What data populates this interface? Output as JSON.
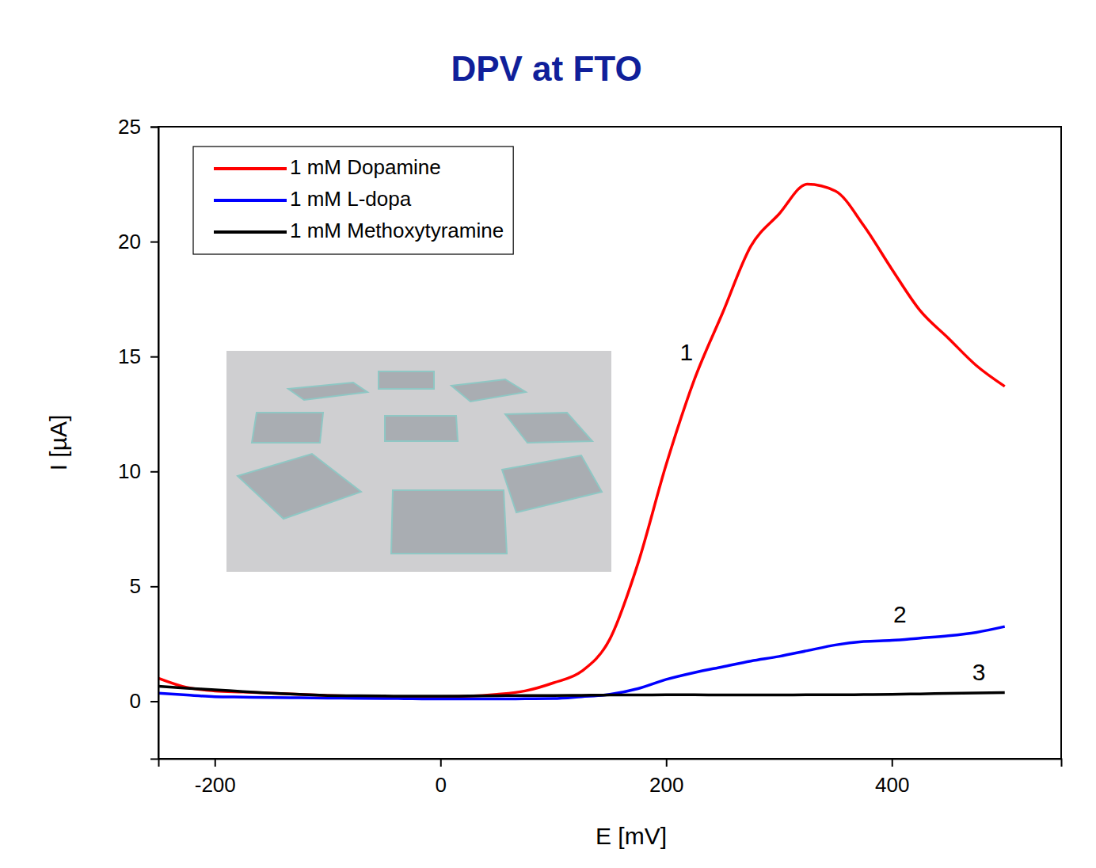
{
  "chart_data": {
    "type": "line",
    "title": "DPV at FTO",
    "x_label": "E [mV]",
    "y_label": "I [µA]",
    "x": [
      -250,
      -225,
      -200,
      -175,
      -150,
      -125,
      -100,
      -75,
      -50,
      -25,
      0,
      25,
      50,
      75,
      100,
      125,
      150,
      175,
      200,
      225,
      250,
      275,
      300,
      325,
      350,
      375,
      400,
      425,
      450,
      475,
      500
    ],
    "series": [
      {
        "name": "1 mM Dopamine",
        "color": "#ff0000",
        "values": [
          1.0,
          0.6,
          0.45,
          0.4,
          0.35,
          0.3,
          0.25,
          0.22,
          0.2,
          0.2,
          0.2,
          0.22,
          0.3,
          0.45,
          0.8,
          1.3,
          2.7,
          6.0,
          10.3,
          14.0,
          16.9,
          19.8,
          21.2,
          22.5,
          22.2,
          20.7,
          18.8,
          17.0,
          15.8,
          14.6,
          13.7
        ]
      },
      {
        "name": "1 mM L-dopa",
        "color": "#0000ff",
        "values": [
          0.35,
          0.27,
          0.2,
          0.18,
          0.16,
          0.15,
          0.14,
          0.13,
          0.12,
          0.11,
          0.1,
          0.1,
          0.1,
          0.11,
          0.12,
          0.2,
          0.3,
          0.55,
          0.95,
          1.25,
          1.5,
          1.75,
          1.95,
          2.2,
          2.45,
          2.6,
          2.65,
          2.75,
          2.85,
          3.0,
          3.25
        ]
      },
      {
        "name": "1 mM Methoxytyramine",
        "color": "#000000",
        "values": [
          0.65,
          0.57,
          0.5,
          0.42,
          0.35,
          0.3,
          0.25,
          0.24,
          0.23,
          0.22,
          0.22,
          0.23,
          0.24,
          0.25,
          0.25,
          0.26,
          0.27,
          0.27,
          0.28,
          0.28,
          0.27,
          0.27,
          0.27,
          0.28,
          0.28,
          0.29,
          0.3,
          0.32,
          0.34,
          0.36,
          0.38
        ]
      }
    ],
    "annotations": [
      {
        "text": "1",
        "x": 218,
        "y": 15.1
      },
      {
        "text": "2",
        "x": 407,
        "y": 3.7
      },
      {
        "text": "3",
        "x": 477,
        "y": 1.2
      }
    ],
    "xlim": [
      -250,
      550
    ],
    "xticks": [
      -200,
      0,
      200,
      400
    ],
    "ylim": [
      -2.5,
      25
    ],
    "yticks": [
      0,
      5,
      10,
      15,
      20,
      25
    ],
    "legend": "upper left",
    "grid": false
  }
}
